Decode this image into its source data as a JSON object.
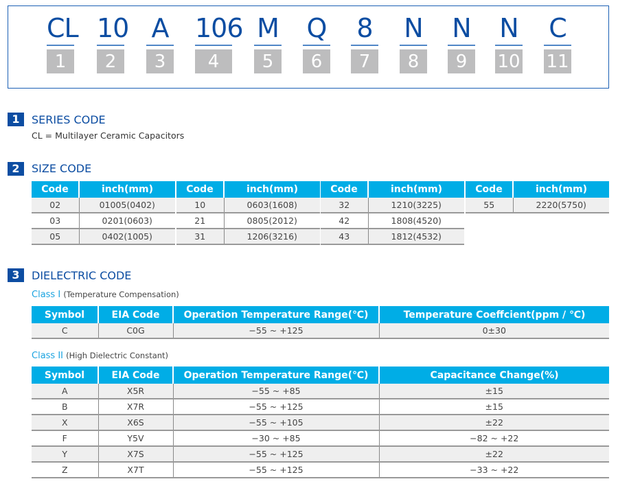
{
  "part_number": {
    "codes": [
      "CL",
      "10",
      "A",
      "106",
      "M",
      "Q",
      "8",
      "N",
      "N",
      "N",
      "C"
    ],
    "indices": [
      "1",
      "2",
      "3",
      "4",
      "5",
      "6",
      "7",
      "8",
      "9",
      "10",
      "11"
    ]
  },
  "series": {
    "num": "1",
    "title": "SERIES CODE",
    "desc": "CL = Multilayer Ceramic Capacitors"
  },
  "size": {
    "num": "2",
    "title": "SIZE CODE",
    "headers": [
      "Code",
      "inch(mm)"
    ],
    "tables": [
      [
        [
          "02",
          "01005(0402)"
        ],
        [
          "03",
          "0201(0603)"
        ],
        [
          "05",
          "0402(1005)"
        ]
      ],
      [
        [
          "10",
          "0603(1608)"
        ],
        [
          "21",
          "0805(2012)"
        ],
        [
          "31",
          "1206(3216)"
        ]
      ],
      [
        [
          "32",
          "1210(3225)"
        ],
        [
          "42",
          "1808(4520)"
        ],
        [
          "43",
          "1812(4532)"
        ]
      ],
      [
        [
          "55",
          "2220(5750)"
        ]
      ]
    ]
  },
  "dielectric": {
    "num": "3",
    "title": "DIELECTRIC CODE",
    "class1": {
      "label": "Class I",
      "sub": "(Temperature Compensation)",
      "headers": [
        "Symbol",
        "EIA Code",
        "Operation Temperature Range(℃)",
        "Temperature Coeffcient(ppm / ℃)"
      ],
      "rows": [
        [
          "C",
          "C0G",
          "−55 ~ +125",
          "0±30"
        ]
      ]
    },
    "class2": {
      "label": "Class II",
      "sub": "(High Dielectric Constant)",
      "headers": [
        "Symbol",
        "EIA Code",
        "Operation Temperature Range(℃)",
        "Capacitance Change(%)"
      ],
      "rows": [
        [
          "A",
          "X5R",
          "−55 ~ +85",
          "±15"
        ],
        [
          "B",
          "X7R",
          "−55 ~ +125",
          "±15"
        ],
        [
          "X",
          "X6S",
          "−55 ~ +105",
          "±22"
        ],
        [
          "F",
          "Y5V",
          "−30 ~ +85",
          "−82 ~ +22"
        ],
        [
          "Y",
          "X7S",
          "−55 ~ +125",
          "±22"
        ],
        [
          "Z",
          "X7T",
          "−55 ~ +125",
          "−33 ~ +22"
        ]
      ]
    }
  },
  "colors": {
    "brand_blue": "#0c4da2",
    "header_cyan": "#00ade6"
  }
}
